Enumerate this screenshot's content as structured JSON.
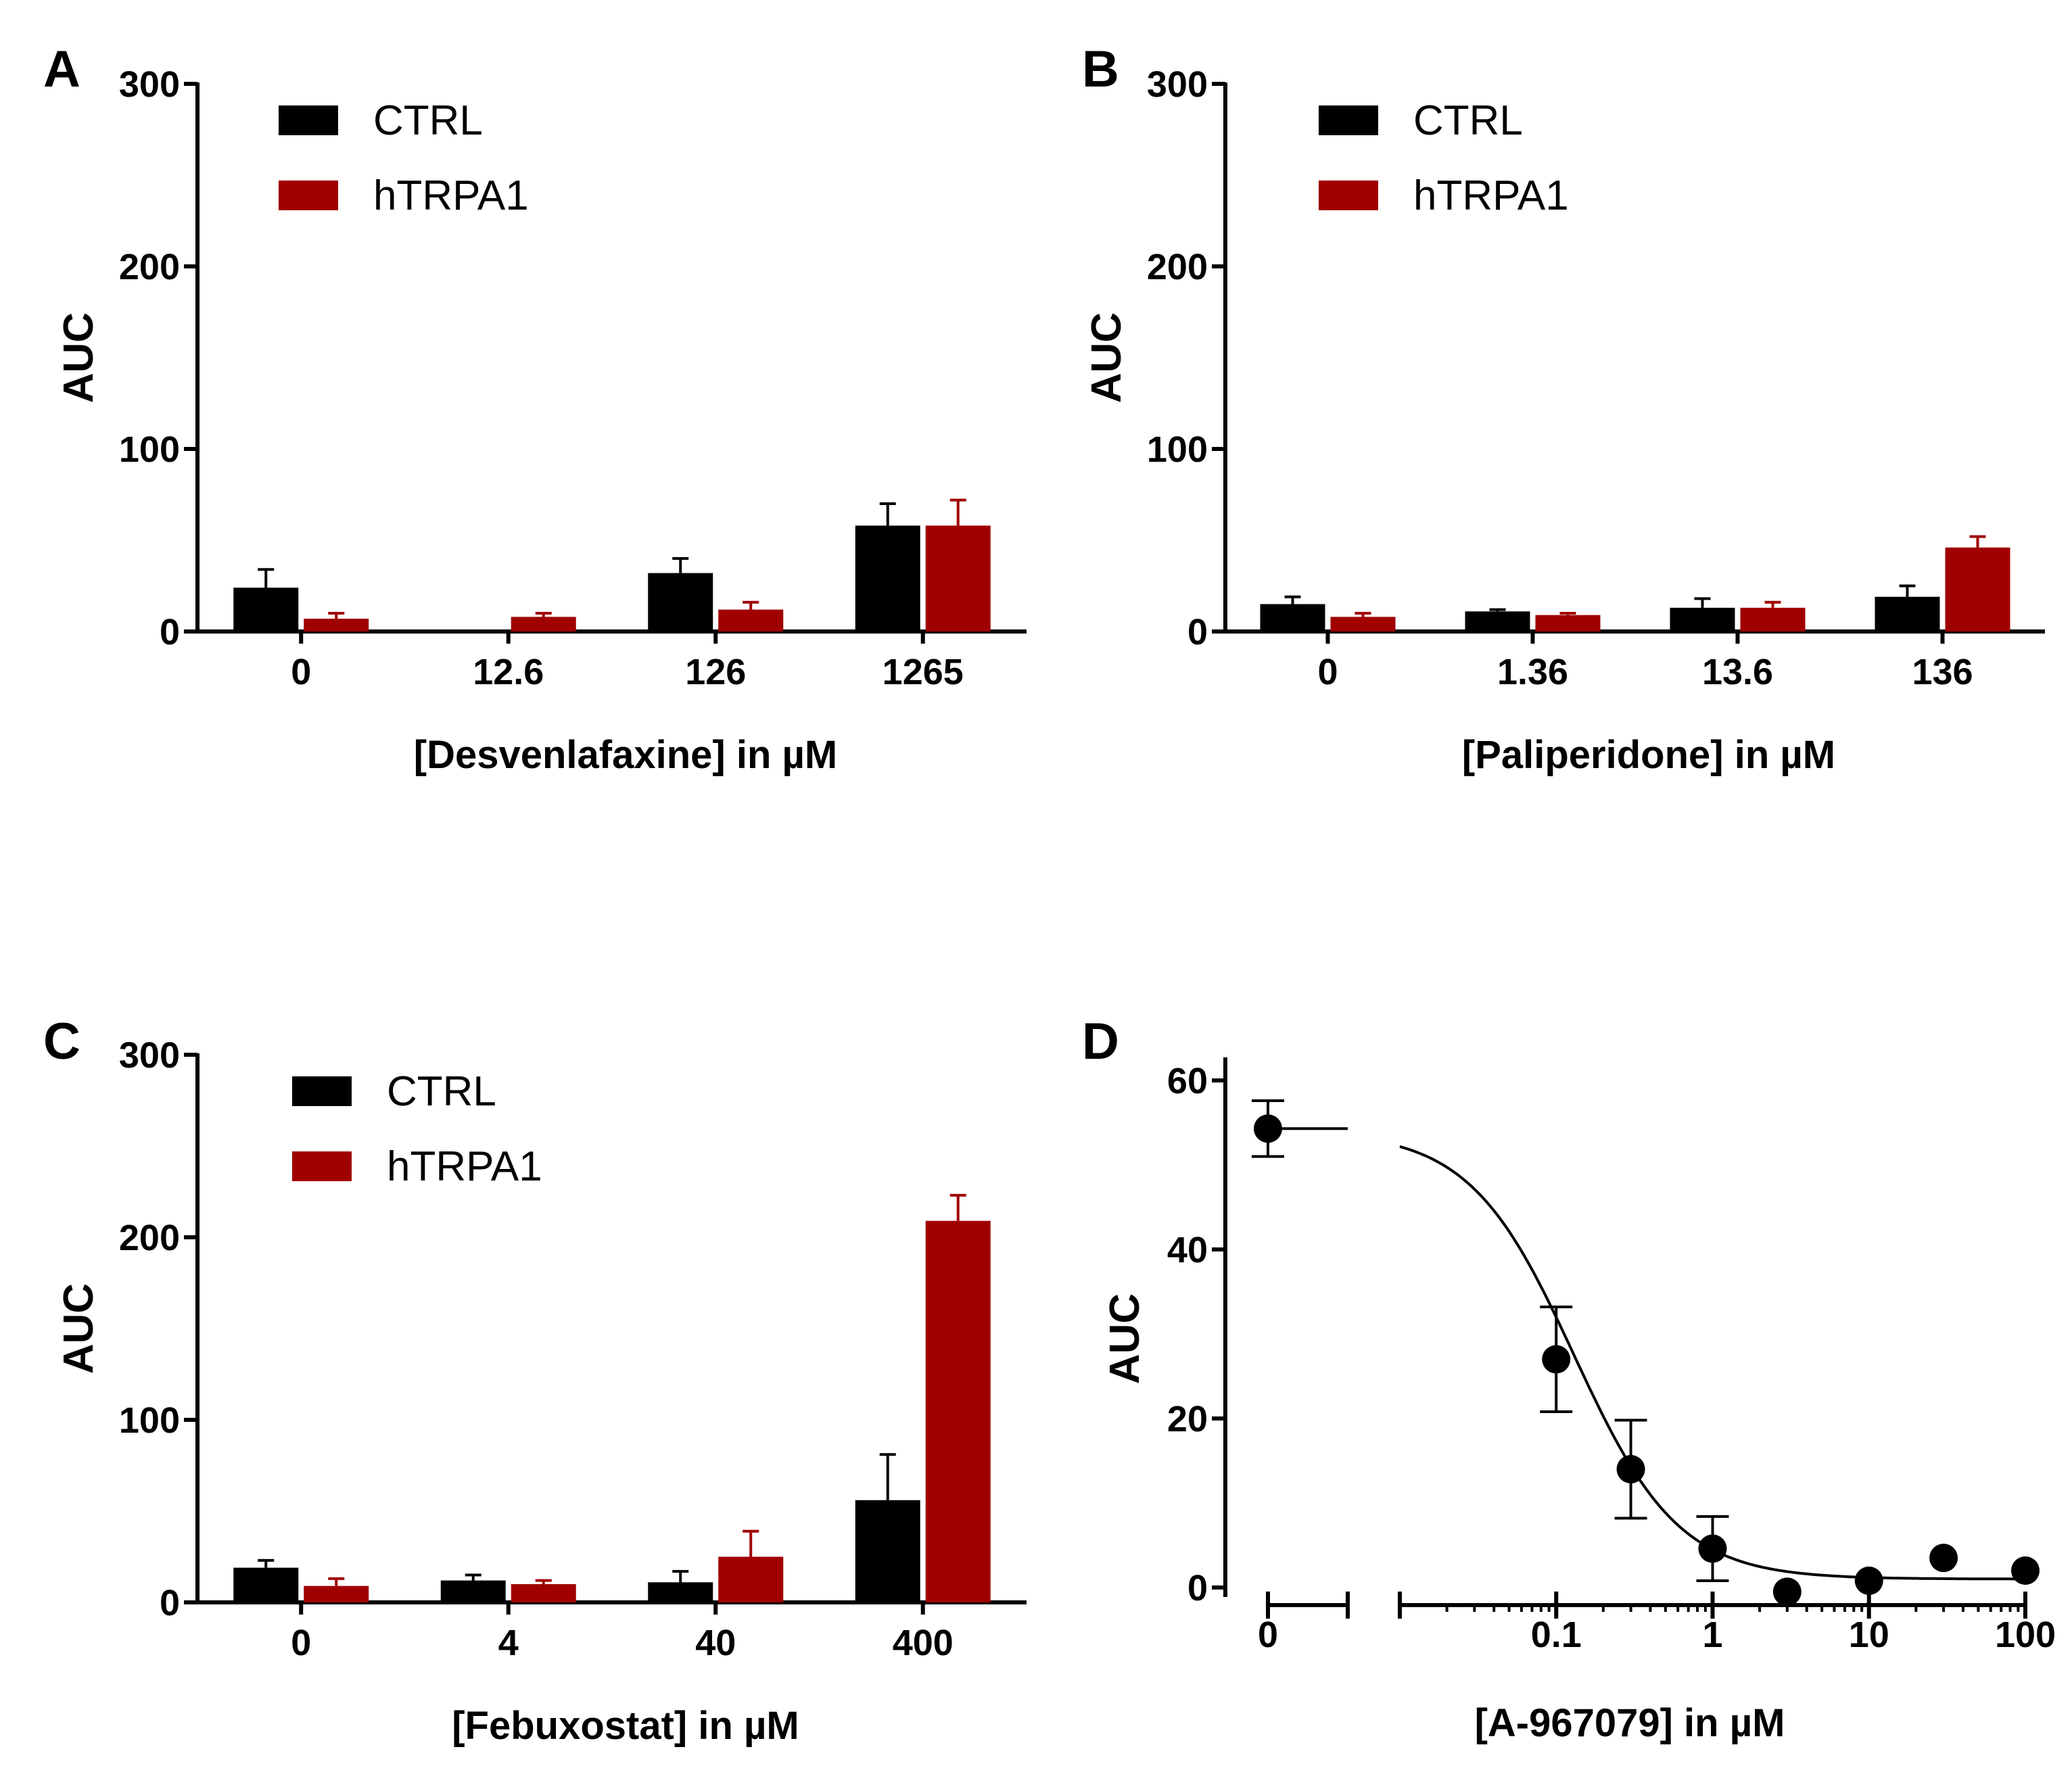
{
  "colors": {
    "ctrl": "#000000",
    "htrpa1": "#a00000",
    "curve": "#000000"
  },
  "chart_data": [
    {
      "panel": "A",
      "type": "bar",
      "xlabel": "[Desvenlafaxine] in µM",
      "ylabel": "AUC",
      "ylim": [
        0,
        300
      ],
      "yticks": [
        "0",
        "100",
        "200",
        "300"
      ],
      "categories": [
        "0",
        "12.6",
        "126",
        "1265"
      ],
      "legend": [
        "CTRL",
        "hTRPA1"
      ],
      "legend_position": "top-left",
      "series": [
        {
          "name": "CTRL",
          "values": [
            24,
            0,
            32,
            58
          ],
          "errors": [
            10,
            0,
            8,
            12
          ]
        },
        {
          "name": "hTRPA1",
          "values": [
            7,
            8,
            12,
            58
          ],
          "errors": [
            3,
            2,
            4,
            14
          ]
        }
      ]
    },
    {
      "panel": "B",
      "type": "bar",
      "xlabel": "[Paliperidone] in µM",
      "ylabel": "AUC",
      "ylim": [
        0,
        300
      ],
      "yticks": [
        "0",
        "100",
        "200",
        "300"
      ],
      "categories": [
        "0",
        "1.36",
        "13.6",
        "136"
      ],
      "legend": [
        "CTRL",
        "hTRPA1"
      ],
      "legend_position": "top-left",
      "series": [
        {
          "name": "CTRL",
          "values": [
            15,
            11,
            13,
            19
          ],
          "errors": [
            4,
            1,
            5,
            6
          ]
        },
        {
          "name": "hTRPA1",
          "values": [
            8,
            9,
            13,
            46
          ],
          "errors": [
            2,
            1,
            3,
            6
          ]
        }
      ]
    },
    {
      "panel": "C",
      "type": "bar",
      "xlabel": "[Febuxostat] in µM",
      "ylabel": "AUC",
      "ylim": [
        0,
        300
      ],
      "yticks": [
        "0",
        "100",
        "200",
        "300"
      ],
      "categories": [
        "0",
        "4",
        "40",
        "400"
      ],
      "legend": [
        "CTRL",
        "hTRPA1"
      ],
      "legend_position": "top-left",
      "series": [
        {
          "name": "CTRL",
          "values": [
            19,
            12,
            11,
            56
          ],
          "errors": [
            4,
            3,
            6,
            25
          ]
        },
        {
          "name": "hTRPA1",
          "values": [
            9,
            10,
            25,
            209
          ],
          "errors": [
            4,
            2,
            14,
            14
          ]
        }
      ]
    },
    {
      "panel": "D",
      "type": "scatter",
      "xlabel": "[A-967079] in µM",
      "ylabel": "AUC",
      "ylim": [
        0,
        60
      ],
      "yticks": [
        "0",
        "20",
        "40",
        "60"
      ],
      "xscale": "log",
      "xlim": [
        0.01,
        100
      ],
      "xticks": [
        "0.1",
        "1",
        "10",
        "100"
      ],
      "zero_tick": "0",
      "zero_point": {
        "x": 0,
        "y": 54.3,
        "error": 3.3
      },
      "points": [
        {
          "x": 0.1,
          "y": 27,
          "error": 6.2
        },
        {
          "x": 0.3,
          "y": 14,
          "error": 5.8
        },
        {
          "x": 1,
          "y": 4.6,
          "error": 3.8
        },
        {
          "x": 3,
          "y": -0.5,
          "error": 0
        },
        {
          "x": 10,
          "y": 0.8,
          "error": 0
        },
        {
          "x": 30,
          "y": 3.5,
          "error": 0
        },
        {
          "x": 100,
          "y": 2.0,
          "error": 0
        }
      ],
      "fit": {
        "model": "sigmoid",
        "top": 54,
        "bottom": 1,
        "ic50": 0.13,
        "hill": 1.3
      }
    }
  ]
}
